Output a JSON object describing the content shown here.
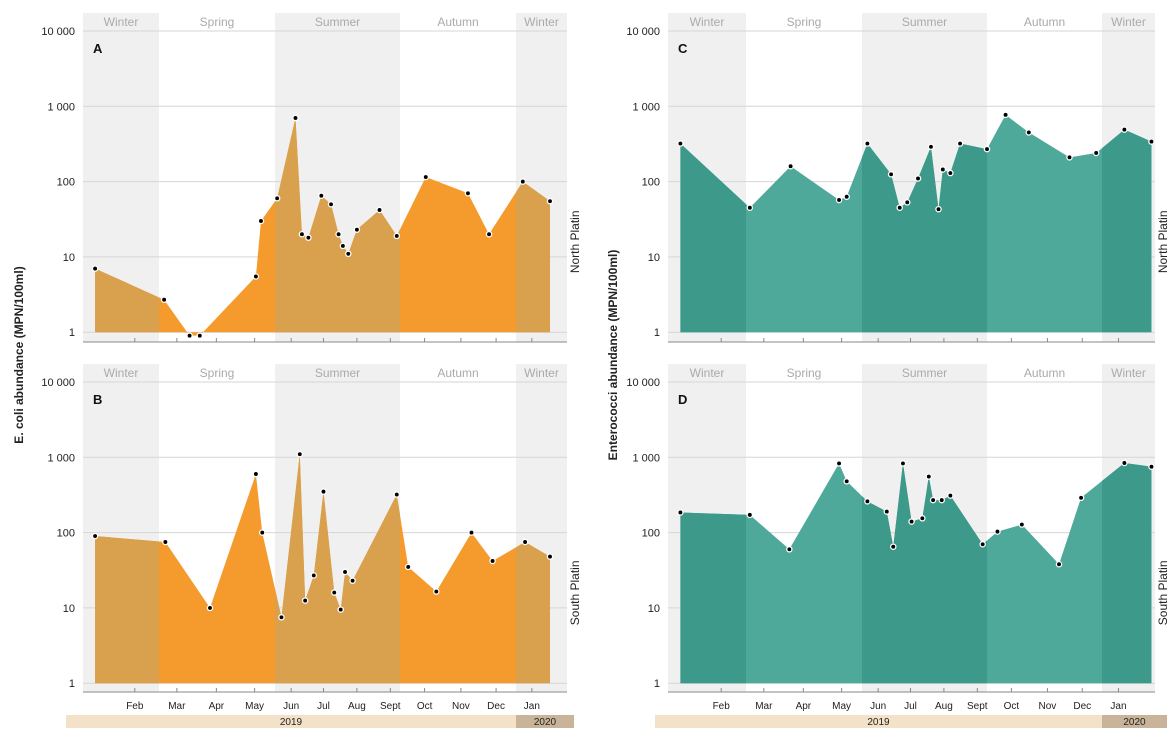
{
  "y_axis_labels": {
    "left": "E. coli abundance (MPN/100ml)",
    "right": "Enterococci abundance (MPN/100ml)"
  },
  "site_labels": {
    "top": "North Platin",
    "bottom": "South Platin"
  },
  "seasons": [
    "Winter",
    "Spring",
    "Summer",
    "Autumn",
    "Winter"
  ],
  "months": [
    "Feb",
    "Mar",
    "Apr",
    "May",
    "Jun",
    "Jul",
    "Aug",
    "Sept",
    "Oct",
    "Nov",
    "Dec",
    "Jan"
  ],
  "years": [
    "2019",
    "2020"
  ],
  "y_ticks": [
    "1",
    "10",
    "100",
    "1 000",
    "10 000"
  ],
  "colors": {
    "ecoli_fill": "#F59B2E",
    "ecoli_dark": "#D9A04E",
    "entero_fill": "#4FA99A",
    "entero_dark": "#3D9A8A",
    "season_shade": "#f0f0f0",
    "year_band": "#f3e1c8",
    "year_band_2020": "#c9b49a"
  },
  "chart_data": [
    {
      "panel": "A",
      "type": "area",
      "scale": "log",
      "ylim": [
        1,
        10000
      ],
      "series": [
        {
          "name": "North Platin",
          "x": [
            "2019-01-23",
            "2019-03-05",
            "2019-03-25",
            "2019-04-02",
            "2019-05-16",
            "2019-05-20",
            "2019-06-02",
            "2019-06-19",
            "2019-06-25",
            "2019-07-01",
            "2019-07-13",
            "2019-07-22",
            "2019-07-29",
            "2019-08-02",
            "2019-08-07",
            "2019-08-15",
            "2019-09-05",
            "2019-09-21",
            "2019-10-16",
            "2019-11-21",
            "2019-12-09",
            "2020-01-07",
            "2020-01-31"
          ],
          "y": [
            7,
            2.7,
            0.9,
            0.9,
            5.5,
            30,
            60,
            700,
            20,
            18,
            65,
            50,
            20,
            14,
            11,
            23,
            42,
            19,
            115,
            70,
            20,
            100,
            55
          ]
        }
      ]
    },
    {
      "panel": "B",
      "type": "area",
      "scale": "log",
      "ylim": [
        1,
        10000
      ],
      "series": [
        {
          "name": "South Platin",
          "x": [
            "2019-01-23",
            "2019-03-06",
            "2019-04-10",
            "2019-05-16",
            "2019-05-21",
            "2019-06-06",
            "2019-06-23",
            "2019-06-28",
            "2019-07-06",
            "2019-07-15",
            "2019-07-25",
            "2019-07-31",
            "2019-08-04",
            "2019-08-11",
            "2019-09-21",
            "2019-10-01",
            "2019-10-25",
            "2019-11-24",
            "2019-12-12",
            "2020-01-09",
            "2020-01-31"
          ],
          "y": [
            90,
            75,
            10,
            600,
            100,
            7.5,
            1100,
            12.5,
            27,
            350,
            16,
            9.5,
            30,
            23,
            320,
            35,
            16.5,
            100,
            42,
            75,
            48
          ]
        }
      ]
    },
    {
      "panel": "C",
      "type": "area",
      "scale": "log",
      "ylim": [
        1,
        10000
      ],
      "series": [
        {
          "name": "North Platin",
          "x": [
            "2019-01-23",
            "2019-03-04",
            "2019-04-05",
            "2019-05-13",
            "2019-05-19",
            "2019-06-05",
            "2019-06-27",
            "2019-07-05",
            "2019-07-12",
            "2019-07-22",
            "2019-08-03",
            "2019-08-10",
            "2019-08-14",
            "2019-08-21",
            "2019-08-30",
            "2019-09-24",
            "2019-10-10",
            "2019-10-30",
            "2019-12-04",
            "2019-12-27",
            "2020-01-20",
            "2020-02-12"
          ],
          "y": [
            320,
            45,
            160,
            57,
            63,
            320,
            125,
            45,
            53,
            110,
            290,
            43,
            145,
            130,
            320,
            270,
            770,
            450,
            210,
            240,
            490,
            340
          ]
        }
      ]
    },
    {
      "panel": "D",
      "type": "area",
      "scale": "log",
      "ylim": [
        1,
        10000
      ],
      "series": [
        {
          "name": "South Platin",
          "x": [
            "2019-01-23",
            "2019-03-04",
            "2019-04-04",
            "2019-05-13",
            "2019-05-19",
            "2019-06-05",
            "2019-06-23",
            "2019-06-29",
            "2019-07-08",
            "2019-07-16",
            "2019-07-26",
            "2019-08-01",
            "2019-08-05",
            "2019-08-13",
            "2019-08-21",
            "2019-09-20",
            "2019-10-03",
            "2019-10-24",
            "2019-11-25",
            "2019-12-14",
            "2020-01-20",
            "2020-02-12"
          ],
          "y": [
            185,
            172,
            60,
            830,
            480,
            260,
            190,
            65,
            830,
            140,
            155,
            555,
            270,
            270,
            310,
            70,
            103,
            128,
            38,
            290,
            840,
            750
          ]
        }
      ]
    }
  ]
}
